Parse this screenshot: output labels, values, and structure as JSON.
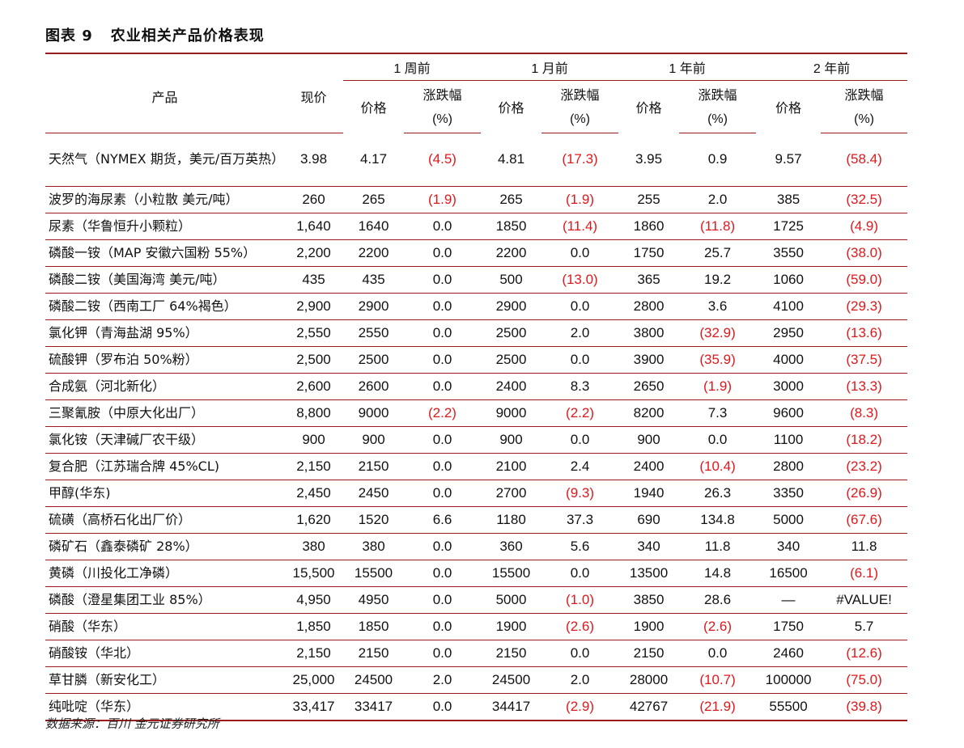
{
  "title": {
    "number": "图表 9",
    "text": "农业相关产品价格表现"
  },
  "headers": {
    "product": "产品",
    "current_price": "现价",
    "periods": [
      "1 周前",
      "1 月前",
      "1 年前",
      "2 年前"
    ],
    "price": "价格",
    "change": "涨跌幅",
    "change_unit": "(%)"
  },
  "rows": [
    {
      "product": "天然气（NYMEX 期货，美元/百万英热）",
      "current": "3.98",
      "cells": [
        "4.17",
        "(4.5)",
        "4.81",
        "(17.3)",
        "3.95",
        "0.9",
        "9.57",
        "(58.4)"
      ]
    },
    {
      "product": "波罗的海尿素（小粒散 美元/吨）",
      "current": "260",
      "cells": [
        "265",
        "(1.9)",
        "265",
        "(1.9)",
        "255",
        "2.0",
        "385",
        "(32.5)"
      ]
    },
    {
      "product": "尿素（华鲁恒升小颗粒）",
      "current": "1,640",
      "cells": [
        "1640",
        "0.0",
        "1850",
        "(11.4)",
        "1860",
        "(11.8)",
        "1725",
        "(4.9)"
      ]
    },
    {
      "product": "磷酸一铵（MAP 安徽六国粉 55%）",
      "current": "2,200",
      "cells": [
        "2200",
        "0.0",
        "2200",
        "0.0",
        "1750",
        "25.7",
        "3550",
        "(38.0)"
      ]
    },
    {
      "product": "磷酸二铵（美国海湾 美元/吨）",
      "current": "435",
      "cells": [
        "435",
        "0.0",
        "500",
        "(13.0)",
        "365",
        "19.2",
        "1060",
        "(59.0)"
      ]
    },
    {
      "product": "磷酸二铵（西南工厂 64%褐色）",
      "current": "2,900",
      "cells": [
        "2900",
        "0.0",
        "2900",
        "0.0",
        "2800",
        "3.6",
        "4100",
        "(29.3)"
      ]
    },
    {
      "product": "氯化钾（青海盐湖 95%）",
      "current": "2,550",
      "cells": [
        "2550",
        "0.0",
        "2500",
        "2.0",
        "3800",
        "(32.9)",
        "2950",
        "(13.6)"
      ]
    },
    {
      "product": "硫酸钾（罗布泊 50%粉）",
      "current": "2,500",
      "cells": [
        "2500",
        "0.0",
        "2500",
        "0.0",
        "3900",
        "(35.9)",
        "4000",
        "(37.5)"
      ]
    },
    {
      "product": "合成氨（河北新化）",
      "current": "2,600",
      "cells": [
        "2600",
        "0.0",
        "2400",
        "8.3",
        "2650",
        "(1.9)",
        "3000",
        "(13.3)"
      ]
    },
    {
      "product": "三聚氰胺（中原大化出厂）",
      "current": "8,800",
      "cells": [
        "9000",
        "(2.2)",
        "9000",
        "(2.2)",
        "8200",
        "7.3",
        "9600",
        "(8.3)"
      ]
    },
    {
      "product": "氯化铵（天津碱厂农干级）",
      "current": "900",
      "cells": [
        "900",
        "0.0",
        "900",
        "0.0",
        "900",
        "0.0",
        "1100",
        "(18.2)"
      ]
    },
    {
      "product": "复合肥（江苏瑞合牌 45%CL)",
      "current": "2,150",
      "cells": [
        "2150",
        "0.0",
        "2100",
        "2.4",
        "2400",
        "(10.4)",
        "2800",
        "(23.2)"
      ]
    },
    {
      "product": "甲醇(华东)",
      "current": "2,450",
      "cells": [
        "2450",
        "0.0",
        "2700",
        "(9.3)",
        "1940",
        "26.3",
        "3350",
        "(26.9)"
      ]
    },
    {
      "product": "硫磺（高桥石化出厂价）",
      "current": "1,620",
      "cells": [
        "1520",
        "6.6",
        "1180",
        "37.3",
        "690",
        "134.8",
        "5000",
        "(67.6)"
      ]
    },
    {
      "product": "磷矿石（鑫泰磷矿 28%）",
      "current": "380",
      "cells": [
        "380",
        "0.0",
        "360",
        "5.6",
        "340",
        "11.8",
        "340",
        "11.8"
      ]
    },
    {
      "product": "黄磷（川投化工净磷）",
      "current": "15,500",
      "cells": [
        "15500",
        "0.0",
        "15500",
        "0.0",
        "13500",
        "14.8",
        "16500",
        "(6.1)"
      ]
    },
    {
      "product": "磷酸（澄星集团工业 85%）",
      "current": "4,950",
      "cells": [
        "4950",
        "0.0",
        "5000",
        "(1.0)",
        "3850",
        "28.6",
        "—",
        "#VALUE!"
      ]
    },
    {
      "product": "硝酸（华东）",
      "current": "1,850",
      "cells": [
        "1850",
        "0.0",
        "1900",
        "(2.6)",
        "1900",
        "(2.6)",
        "1750",
        "5.7"
      ]
    },
    {
      "product": "硝酸铵（华北）",
      "current": "2,150",
      "cells": [
        "2150",
        "0.0",
        "2150",
        "0.0",
        "2150",
        "0.0",
        "2460",
        "(12.6)"
      ]
    },
    {
      "product": "草甘膦（新安化工）",
      "current": "25,000",
      "cells": [
        "24500",
        "2.0",
        "24500",
        "2.0",
        "28000",
        "(10.7)",
        "100000",
        "(75.0)"
      ]
    },
    {
      "product": "纯吡啶（华东）",
      "current": "33,417",
      "cells": [
        "33417",
        "0.0",
        "34417",
        "(2.9)",
        "42767",
        "(21.9)",
        "55500",
        "(39.8)"
      ]
    }
  ],
  "source": "数据来源：百川 金元证券研究所",
  "colors": {
    "negative": "#e0181b",
    "rule": "#9b1b1b"
  }
}
